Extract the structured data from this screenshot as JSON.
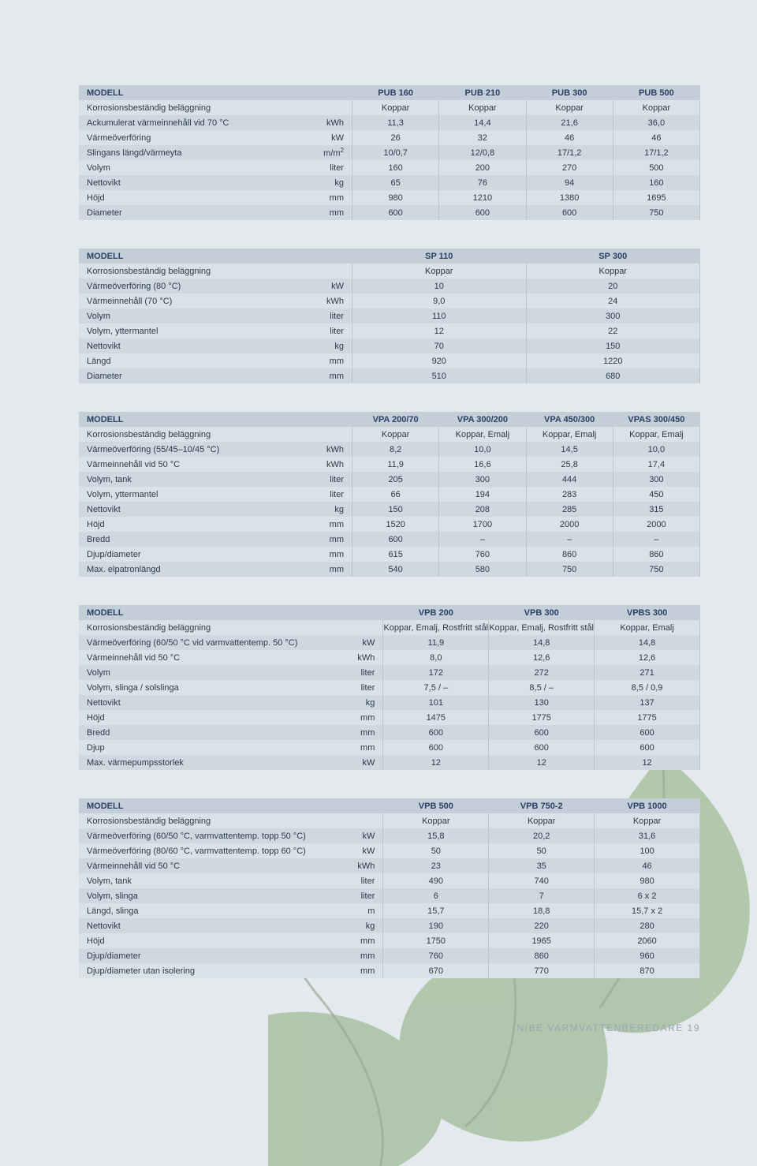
{
  "colors": {
    "page_bg": "#e4e9ed",
    "header_bg": "#c3ced9",
    "row_odd": "#dae1e7",
    "row_even": "#cfd8e0",
    "cell_border": "#b8c4cf",
    "text": "#2a3a4a",
    "header_text": "#2a4064",
    "footer_text": "#9aa7b2"
  },
  "model_label": "MODELL",
  "footer": "NIBE VARMVATTENBEREDARE 19",
  "tables": [
    {
      "id": "pub",
      "columns": [
        "PUB 160",
        "PUB 210",
        "PUB 300",
        "PUB 500"
      ],
      "label_col_pct": 37,
      "unit_col_pct": 7,
      "rows": [
        {
          "label": "Korrosionsbeständig beläggning",
          "unit": "",
          "vals": [
            "Koppar",
            "Koppar",
            "Koppar",
            "Koppar"
          ]
        },
        {
          "label": "Ackumulerat värmeinnehåll vid 70 °C",
          "unit": "kWh",
          "vals": [
            "11,3",
            "14,4",
            "21,6",
            "36,0"
          ]
        },
        {
          "label": "Värmeöverföring",
          "unit": "kW",
          "vals": [
            "26",
            "32",
            "46",
            "46"
          ]
        },
        {
          "label": "Slingans längd/värmeyta",
          "unit": "m/m²",
          "vals": [
            "10/0,7",
            "12/0,8",
            "17/1,2",
            "17/1,2"
          ]
        },
        {
          "label": "Volym",
          "unit": "liter",
          "vals": [
            "160",
            "200",
            "270",
            "500"
          ]
        },
        {
          "label": "Nettovikt",
          "unit": "kg",
          "vals": [
            "65",
            "76",
            "94",
            "160"
          ]
        },
        {
          "label": "Höjd",
          "unit": "mm",
          "vals": [
            "980",
            "1210",
            "1380",
            "1695"
          ]
        },
        {
          "label": "Diameter",
          "unit": "mm",
          "vals": [
            "600",
            "600",
            "600",
            "750"
          ]
        }
      ]
    },
    {
      "id": "sp",
      "columns": [
        "SP 110",
        "SP 300"
      ],
      "label_col_pct": 37,
      "unit_col_pct": 7,
      "rows": [
        {
          "label": "Korrosionsbeständig beläggning",
          "unit": "",
          "vals": [
            "Koppar",
            "Koppar"
          ]
        },
        {
          "label": "Värmeöverföring (80 °C)",
          "unit": "kW",
          "vals": [
            "10",
            "20"
          ]
        },
        {
          "label": "Värmeinnehåll (70 °C)",
          "unit": "kWh",
          "vals": [
            "9,0",
            "24"
          ]
        },
        {
          "label": "Volym",
          "unit": "liter",
          "vals": [
            "110",
            "300"
          ]
        },
        {
          "label": "Volym, yttermantel",
          "unit": "liter",
          "vals": [
            "12",
            "22"
          ]
        },
        {
          "label": "Nettovikt",
          "unit": "kg",
          "vals": [
            "70",
            "150"
          ]
        },
        {
          "label": "Längd",
          "unit": "mm",
          "vals": [
            "920",
            "1220"
          ]
        },
        {
          "label": "Diameter",
          "unit": "mm",
          "vals": [
            "510",
            "680"
          ]
        }
      ]
    },
    {
      "id": "vpa",
      "columns": [
        "VPA 200/70",
        "VPA 300/200",
        "VPA 450/300",
        "VPAS 300/450"
      ],
      "label_col_pct": 37,
      "unit_col_pct": 7,
      "rows": [
        {
          "label": "Korrosionsbeständig beläggning",
          "unit": "",
          "vals": [
            "Koppar",
            "Koppar, Emalj",
            "Koppar, Emalj",
            "Koppar, Emalj"
          ]
        },
        {
          "label": "Värmeöverföring (55/45–10/45 °C)",
          "unit": "kWh",
          "vals": [
            "8,2",
            "10,0",
            "14,5",
            "10,0"
          ]
        },
        {
          "label": "Värmeinnehåll vid 50 °C",
          "unit": "kWh",
          "vals": [
            "11,9",
            "16,6",
            "25,8",
            "17,4"
          ]
        },
        {
          "label": "Volym, tank",
          "unit": "liter",
          "vals": [
            "205",
            "300",
            "444",
            "300"
          ]
        },
        {
          "label": "Volym, yttermantel",
          "unit": "liter",
          "vals": [
            "66",
            "194",
            "283",
            "450"
          ]
        },
        {
          "label": "Nettovikt",
          "unit": "kg",
          "vals": [
            "150",
            "208",
            "285",
            "315"
          ]
        },
        {
          "label": "Höjd",
          "unit": "mm",
          "vals": [
            "1520",
            "1700",
            "2000",
            "2000"
          ]
        },
        {
          "label": "Bredd",
          "unit": "mm",
          "vals": [
            "600",
            "–",
            "–",
            "–"
          ]
        },
        {
          "label": "Djup/diameter",
          "unit": "mm",
          "vals": [
            "615",
            "760",
            "860",
            "860"
          ]
        },
        {
          "label": "Max. elpatronlängd",
          "unit": "mm",
          "vals": [
            "540",
            "580",
            "750",
            "750"
          ]
        }
      ]
    },
    {
      "id": "vpb",
      "columns": [
        "VPB 200",
        "VPB 300",
        "VPBS 300"
      ],
      "label_col_pct": 43,
      "unit_col_pct": 6,
      "rows": [
        {
          "label": "Korrosionsbeständig beläggning",
          "unit": "",
          "vals": [
            "Koppar, Emalj, Rostfritt stål",
            "Koppar, Emalj, Rostfritt stål",
            "Koppar, Emalj"
          ]
        },
        {
          "label": "Värmeöverföring (60/50 °C vid varmvattentemp. 50 °C)",
          "unit": "kW",
          "vals": [
            "11,9",
            "14,8",
            "14,8"
          ]
        },
        {
          "label": "Värmeinnehåll vid 50 °C",
          "unit": "kWh",
          "vals": [
            "8,0",
            "12,6",
            "12,6"
          ]
        },
        {
          "label": "Volym",
          "unit": "liter",
          "vals": [
            "172",
            "272",
            "271"
          ]
        },
        {
          "label": "Volym, slinga / solslinga",
          "unit": "liter",
          "vals": [
            "7,5 / –",
            "8,5 / –",
            "8,5 / 0,9"
          ]
        },
        {
          "label": "Nettovikt",
          "unit": "kg",
          "vals": [
            "101",
            "130",
            "137"
          ]
        },
        {
          "label": "Höjd",
          "unit": "mm",
          "vals": [
            "1475",
            "1775",
            "1775"
          ]
        },
        {
          "label": "Bredd",
          "unit": "mm",
          "vals": [
            "600",
            "600",
            "600"
          ]
        },
        {
          "label": "Djup",
          "unit": "mm",
          "vals": [
            "600",
            "600",
            "600"
          ]
        },
        {
          "label": "Max. värmepumpsstorlek",
          "unit": "kW",
          "vals": [
            "12",
            "12",
            "12"
          ]
        }
      ]
    },
    {
      "id": "vpb_large",
      "columns": [
        "VPB 500",
        "VPB 750-2",
        "VPB 1000"
      ],
      "label_col_pct": 43,
      "unit_col_pct": 6,
      "rows": [
        {
          "label": "Korrosionsbeständig beläggning",
          "unit": "",
          "vals": [
            "Koppar",
            "Koppar",
            "Koppar"
          ]
        },
        {
          "label": "Värmeöverföring (60/50 °C, varmvattentemp. topp 50 °C)",
          "unit": "kW",
          "vals": [
            "15,8",
            "20,2",
            "31,6"
          ]
        },
        {
          "label": "Värmeöverföring (80/60 °C, varmvattentemp. topp 60 °C)",
          "unit": "kW",
          "vals": [
            "50",
            "50",
            "100"
          ]
        },
        {
          "label": "Värmeinnehåll vid 50 °C",
          "unit": "kWh",
          "vals": [
            "23",
            "35",
            "46"
          ]
        },
        {
          "label": "Volym, tank",
          "unit": "liter",
          "vals": [
            "490",
            "740",
            "980"
          ]
        },
        {
          "label": "Volym, slinga",
          "unit": "liter",
          "vals": [
            "6",
            "7",
            "6 x 2"
          ]
        },
        {
          "label": "Längd, slinga",
          "unit": "m",
          "vals": [
            "15,7",
            "18,8",
            "15,7 x 2"
          ]
        },
        {
          "label": "Nettovikt",
          "unit": "kg",
          "vals": [
            "190",
            "220",
            "280"
          ]
        },
        {
          "label": "Höjd",
          "unit": "mm",
          "vals": [
            "1750",
            "1965",
            "2060"
          ]
        },
        {
          "label": "Djup/diameter",
          "unit": "mm",
          "vals": [
            "760",
            "860",
            "960"
          ]
        },
        {
          "label": "Djup/diameter utan isolering",
          "unit": "mm",
          "vals": [
            "670",
            "770",
            "870"
          ]
        }
      ]
    }
  ]
}
